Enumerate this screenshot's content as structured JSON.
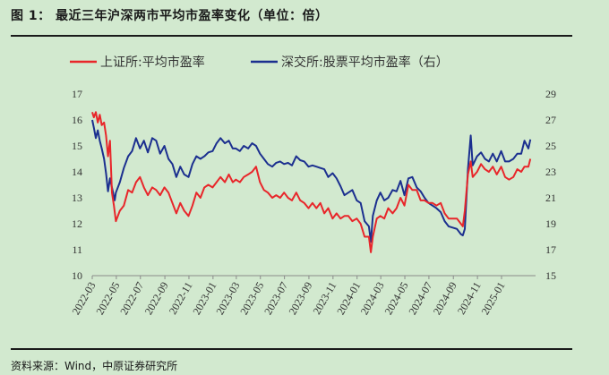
{
  "header": {
    "title": "图 1： 最近三年沪深两市平均市盈率变化（单位：倍）"
  },
  "footer": {
    "source": "资料来源：Wind，中原证券研究所"
  },
  "chart_data": {
    "type": "line",
    "title": "",
    "xlabel": "",
    "ylabel": "",
    "y_left_ticks": [
      "10",
      "11",
      "12",
      "13",
      "14",
      "15",
      "16",
      "17"
    ],
    "y_right_ticks": [
      "15",
      "17",
      "19",
      "21",
      "23",
      "25",
      "27",
      "29"
    ],
    "x_ticks": [
      "2022-03",
      "2022-05",
      "2022-07",
      "2022-09",
      "2022-11",
      "2023-01",
      "2023-03",
      "2023-05",
      "2023-07",
      "2023-09",
      "2023-11",
      "2024-01",
      "2024-03",
      "2024-05",
      "2024-07",
      "2024-09",
      "2024-11",
      "2025-01"
    ],
    "legend_position": "top",
    "colors": {
      "sh": "#e8262a",
      "sz": "#1b2f8f"
    },
    "series": [
      {
        "name": "上证所:平均市盈率",
        "axis": "left",
        "x": [
          "2022-03-01",
          "2022-03-05",
          "2022-03-10",
          "2022-03-15",
          "2022-03-20",
          "2022-03-25",
          "2022-03-31",
          "2022-04-05",
          "2022-04-10",
          "2022-04-15",
          "2022-04-20",
          "2022-04-25",
          "2022-04-30",
          "2022-05-10",
          "2022-05-20",
          "2022-05-31",
          "2022-06-10",
          "2022-06-20",
          "2022-06-30",
          "2022-07-10",
          "2022-07-20",
          "2022-07-31",
          "2022-08-10",
          "2022-08-20",
          "2022-08-31",
          "2022-09-10",
          "2022-09-20",
          "2022-09-30",
          "2022-10-10",
          "2022-10-20",
          "2022-10-31",
          "2022-11-10",
          "2022-11-20",
          "2022-11-30",
          "2022-12-10",
          "2022-12-20",
          "2022-12-31",
          "2023-01-10",
          "2023-01-20",
          "2023-01-31",
          "2023-02-10",
          "2023-02-20",
          "2023-02-28",
          "2023-03-10",
          "2023-03-20",
          "2023-03-31",
          "2023-04-10",
          "2023-04-20",
          "2023-04-30",
          "2023-05-10",
          "2023-05-20",
          "2023-05-31",
          "2023-06-10",
          "2023-06-20",
          "2023-06-30",
          "2023-07-10",
          "2023-07-20",
          "2023-07-31",
          "2023-08-10",
          "2023-08-20",
          "2023-08-31",
          "2023-09-10",
          "2023-09-20",
          "2023-09-30",
          "2023-10-10",
          "2023-10-20",
          "2023-10-31",
          "2023-11-10",
          "2023-11-20",
          "2023-11-30",
          "2023-12-10",
          "2023-12-20",
          "2023-12-31",
          "2024-01-10",
          "2024-01-20",
          "2024-01-31",
          "2024-02-05",
          "2024-02-10",
          "2024-02-20",
          "2024-02-29",
          "2024-03-10",
          "2024-03-20",
          "2024-03-31",
          "2024-04-10",
          "2024-04-20",
          "2024-04-30",
          "2024-05-10",
          "2024-05-20",
          "2024-05-31",
          "2024-06-10",
          "2024-06-20",
          "2024-06-30",
          "2024-07-10",
          "2024-07-20",
          "2024-07-31",
          "2024-08-10",
          "2024-08-20",
          "2024-08-31",
          "2024-09-10",
          "2024-09-20",
          "2024-09-25",
          "2024-09-30",
          "2024-10-08",
          "2024-10-15",
          "2024-10-20",
          "2024-10-31",
          "2024-11-10",
          "2024-11-20",
          "2024-11-30",
          "2024-12-10",
          "2024-12-20",
          "2024-12-31",
          "2025-01-10",
          "2025-01-20",
          "2025-01-31",
          "2025-02-10",
          "2025-02-20",
          "2025-02-28",
          "2025-03-10",
          "2025-03-15"
        ],
        "values": [
          16.3,
          16.1,
          16.3,
          15.9,
          16.2,
          15.8,
          15.9,
          15.4,
          14.6,
          15.2,
          13.2,
          12.7,
          12.1,
          12.5,
          12.7,
          13.3,
          13.2,
          13.6,
          13.8,
          13.4,
          13.1,
          13.4,
          13.3,
          13.1,
          13.4,
          13.2,
          12.8,
          12.4,
          12.8,
          12.5,
          12.3,
          12.7,
          13.2,
          13.0,
          13.4,
          13.5,
          13.4,
          13.6,
          13.8,
          13.6,
          13.9,
          13.6,
          13.7,
          13.6,
          13.8,
          13.9,
          14.0,
          14.2,
          13.6,
          13.3,
          13.2,
          13.0,
          13.1,
          13.0,
          13.2,
          13.0,
          12.9,
          13.2,
          12.9,
          12.8,
          12.6,
          12.8,
          12.6,
          12.8,
          12.4,
          12.6,
          12.2,
          12.4,
          12.2,
          12.3,
          12.3,
          12.1,
          12.2,
          12.0,
          11.5,
          11.5,
          10.9,
          11.5,
          12.2,
          12.3,
          12.2,
          12.6,
          12.4,
          12.6,
          13.0,
          12.7,
          13.5,
          13.3,
          13.3,
          12.9,
          12.9,
          12.8,
          12.8,
          12.7,
          12.8,
          12.4,
          12.2,
          12.2,
          12.2,
          12.0,
          11.9,
          12.5,
          13.9,
          14.4,
          13.8,
          14.0,
          14.3,
          14.1,
          14.0,
          14.2,
          13.9,
          14.2,
          13.8,
          13.7,
          13.8,
          14.1,
          14.0,
          14.2,
          14.2,
          14.5
        ]
      },
      {
        "name": "深交所:股票平均市盈率（右）",
        "axis": "right",
        "x": [
          "2022-03-01",
          "2022-03-05",
          "2022-03-10",
          "2022-03-15",
          "2022-03-20",
          "2022-03-25",
          "2022-03-31",
          "2022-04-05",
          "2022-04-10",
          "2022-04-15",
          "2022-04-20",
          "2022-04-27",
          "2022-04-30",
          "2022-05-10",
          "2022-05-20",
          "2022-05-31",
          "2022-06-10",
          "2022-06-20",
          "2022-06-30",
          "2022-07-10",
          "2022-07-20",
          "2022-07-31",
          "2022-08-10",
          "2022-08-20",
          "2022-08-31",
          "2022-09-10",
          "2022-09-20",
          "2022-09-30",
          "2022-10-10",
          "2022-10-20",
          "2022-10-31",
          "2022-11-10",
          "2022-11-20",
          "2022-11-30",
          "2022-12-10",
          "2022-12-20",
          "2022-12-31",
          "2023-01-10",
          "2023-01-20",
          "2023-01-31",
          "2023-02-10",
          "2023-02-20",
          "2023-02-28",
          "2023-03-10",
          "2023-03-20",
          "2023-03-31",
          "2023-04-10",
          "2023-04-20",
          "2023-04-30",
          "2023-05-10",
          "2023-05-20",
          "2023-05-31",
          "2023-06-10",
          "2023-06-20",
          "2023-06-30",
          "2023-07-10",
          "2023-07-20",
          "2023-07-31",
          "2023-08-10",
          "2023-08-20",
          "2023-08-31",
          "2023-09-10",
          "2023-09-20",
          "2023-09-30",
          "2023-10-10",
          "2023-10-20",
          "2023-10-31",
          "2023-11-10",
          "2023-11-20",
          "2023-11-30",
          "2023-12-10",
          "2023-12-20",
          "2023-12-31",
          "2024-01-10",
          "2024-01-20",
          "2024-01-31",
          "2024-02-05",
          "2024-02-10",
          "2024-02-20",
          "2024-02-29",
          "2024-03-10",
          "2024-03-20",
          "2024-03-31",
          "2024-04-10",
          "2024-04-20",
          "2024-04-30",
          "2024-05-10",
          "2024-05-20",
          "2024-05-31",
          "2024-06-10",
          "2024-06-20",
          "2024-06-30",
          "2024-07-10",
          "2024-07-20",
          "2024-07-31",
          "2024-08-10",
          "2024-08-20",
          "2024-08-31",
          "2024-09-10",
          "2024-09-20",
          "2024-09-25",
          "2024-09-30",
          "2024-10-08",
          "2024-10-15",
          "2024-10-20",
          "2024-10-31",
          "2024-11-10",
          "2024-11-20",
          "2024-11-30",
          "2024-12-10",
          "2024-12-20",
          "2024-12-31",
          "2025-01-10",
          "2025-01-20",
          "2025-01-31",
          "2025-02-10",
          "2025-02-20",
          "2025-02-28",
          "2025-03-10",
          "2025-03-15"
        ],
        "values": [
          27.0,
          26.4,
          25.6,
          26.2,
          25.4,
          24.8,
          24.0,
          22.9,
          21.5,
          22.5,
          21.8,
          20.8,
          21.4,
          22.2,
          23.3,
          24.2,
          24.6,
          25.6,
          24.8,
          25.4,
          24.5,
          25.6,
          25.4,
          24.4,
          25.0,
          24.0,
          23.6,
          22.6,
          23.4,
          22.8,
          22.6,
          23.6,
          24.2,
          24.0,
          24.2,
          24.5,
          24.6,
          25.2,
          25.6,
          25.2,
          25.4,
          24.8,
          24.8,
          24.6,
          25.0,
          24.8,
          25.2,
          25.0,
          24.4,
          24.0,
          23.6,
          23.4,
          23.7,
          23.8,
          23.6,
          23.7,
          23.5,
          24.2,
          23.9,
          23.8,
          23.4,
          23.5,
          23.4,
          23.3,
          23.2,
          22.6,
          22.9,
          22.5,
          21.9,
          21.2,
          21.4,
          21.6,
          20.8,
          20.6,
          19.2,
          18.8,
          17.6,
          19.6,
          20.8,
          21.4,
          20.8,
          21.0,
          21.6,
          21.5,
          22.3,
          21.2,
          22.5,
          22.6,
          21.8,
          21.5,
          21.0,
          20.6,
          20.4,
          20.2,
          19.9,
          19.2,
          18.8,
          18.7,
          18.6,
          18.2,
          18.1,
          18.6,
          23.2,
          25.8,
          23.5,
          24.2,
          24.5,
          24.0,
          23.8,
          24.4,
          23.8,
          24.6,
          23.8,
          23.8,
          24.0,
          24.4,
          24.4,
          25.4,
          24.8,
          25.5
        ]
      }
    ]
  }
}
